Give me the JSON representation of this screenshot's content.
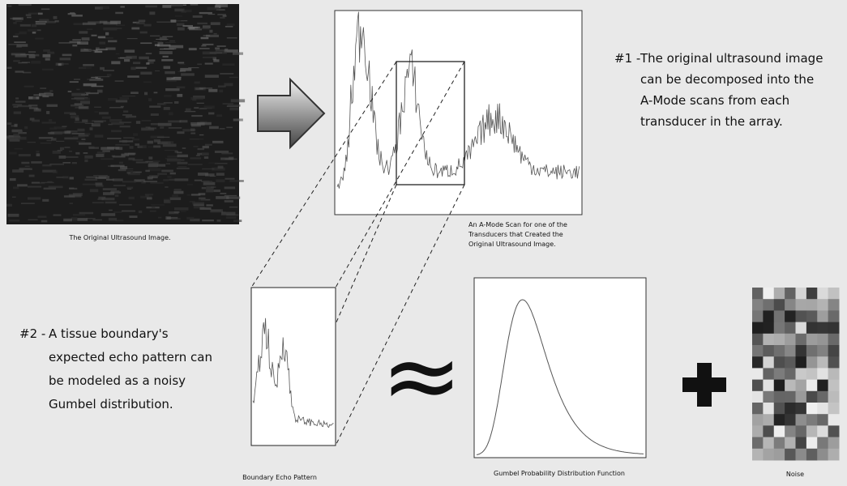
{
  "original_image": {
    "caption": "The Original Ultrasound Image."
  },
  "a_mode_scan": {
    "caption_lines": [
      "An A-Mode Scan for one of the",
      "Transducers that Created the",
      "Original Ultrasound Image."
    ]
  },
  "note_1": {
    "label": "#1 -",
    "lines": [
      "The original ultrasound image",
      "can be decomposed into the",
      "A-Mode scans from each",
      "transducer in the array."
    ]
  },
  "note_2": {
    "label": "#2 -",
    "lines": [
      "A tissue boundary's",
      "expected echo pattern can",
      "be modeled as a noisy",
      "Gumbel distribution."
    ]
  },
  "boundary_echo": {
    "caption": "Boundary Echo Pattern"
  },
  "gumbel": {
    "caption": "Gumbel Probability Distribution Function"
  },
  "noise": {
    "caption": "Noise"
  }
}
